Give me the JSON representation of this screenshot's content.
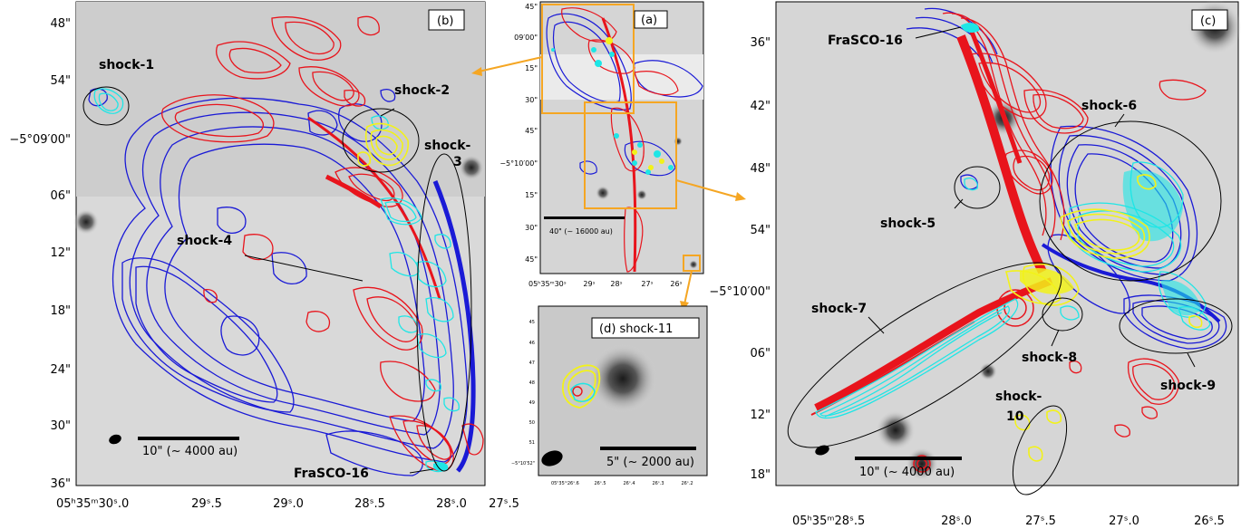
{
  "panels": {
    "b": {
      "label": "(b)",
      "y_ticks": [
        "48\"",
        "54\"",
        "−5°09′00\"",
        "06\"",
        "12\"",
        "18\"",
        "24\"",
        "30\"",
        "36\""
      ],
      "x_ticks": [
        "05ʰ35ᵐ30ˢ.0",
        "29ˢ.5",
        "29ˢ.0",
        "28ˢ.5",
        "28ˢ.0",
        "27ˢ.5"
      ],
      "scalebar": "10\" (~ 4000 au)",
      "shocks": [
        "shock-1",
        "shock-2",
        "shock-",
        "3",
        "shock-4"
      ],
      "source": "FraSCO-16"
    },
    "a": {
      "label": "(a)",
      "y_ticks": [
        "45\"",
        "09′00\"",
        "15\"",
        "30\"",
        "45\"",
        "−5°10′00\"",
        "15\"",
        "30\"",
        "45\""
      ],
      "x_ticks": [
        "05ʰ35ᵐ30ˢ",
        "29ˢ",
        "28ˢ",
        "27ˢ",
        "26ˢ"
      ],
      "scalebar": "40\" (~ 16000 au)"
    },
    "d": {
      "label": "(d) shock-11",
      "y_ticks": [
        "45",
        "46",
        "47",
        "48",
        "49",
        "50",
        "51",
        "−5°10′52\""
      ],
      "x_ticks": [
        "05ʰ35ᵐ26ˢ.6",
        "26ˢ.5",
        "26ˢ.4",
        "26ˢ.3",
        "26ˢ.2"
      ],
      "scalebar": "5\" (~ 2000 au)"
    },
    "c": {
      "label": "(c)",
      "y_ticks": [
        "36\"",
        "42\"",
        "48\"",
        "54\"",
        "−5°10′00\"",
        "06\"",
        "12\"",
        "18\""
      ],
      "x_ticks": [
        "05ʰ35ᵐ28ˢ.5",
        "28ˢ.0",
        "27ˢ.5",
        "27ˢ.0",
        "26ˢ.5"
      ],
      "scalebar": "10\" (~ 4000 au)",
      "shocks": [
        "shock-5",
        "shock-6",
        "shock-7",
        "shock-8",
        "shock-9",
        "shock-",
        "10"
      ],
      "source": "FraSCO-16"
    }
  },
  "colors": {
    "red": "#e8141c",
    "blue": "#1a1ad6",
    "cyan": "#1ee6e6",
    "yellow": "#f2f21a",
    "orange": "#f5a623",
    "bg_gray": "#d7d7d7"
  }
}
